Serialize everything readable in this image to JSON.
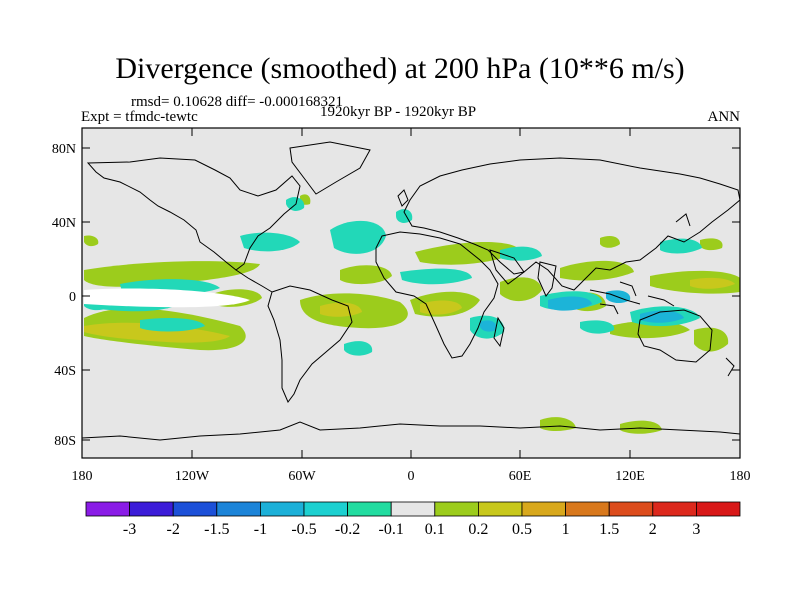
{
  "title": "Divergence (smoothed) at 200 hPa (10**6 m/s)",
  "stats": "rmsd= 0.10628 diff= -0.000168321",
  "experiment": "Expt = tfmdc-tewtc",
  "period": "1920kyr BP - 1920kyr BP",
  "season": "ANN",
  "lat_ticks": [
    "80N",
    "40N",
    "0",
    "40S",
    "80S"
  ],
  "lon_ticks": [
    "180",
    "120W",
    "60W",
    "0",
    "60E",
    "120E",
    "180"
  ],
  "colorbar": {
    "labels": [
      "-3",
      "-2",
      "-1.5",
      "-1",
      "-0.5",
      "-0.2",
      "-0.1",
      "0.1",
      "0.2",
      "0.5",
      "1",
      "1.5",
      "2",
      "3"
    ],
    "colors": [
      "#8a1ce6",
      "#3c1cd8",
      "#1c50d8",
      "#1c84d8",
      "#1cb0d8",
      "#1cd0d0",
      "#22dca0",
      "#e6e6e6",
      "#9ccc1c",
      "#c8c81c",
      "#d8a81c",
      "#d8781c",
      "#dc4c1c",
      "#dc281c",
      "#d81818"
    ]
  },
  "colors": {
    "background": "#e6e6e6",
    "neg_cyan": "#22d8b8",
    "neg_blue": "#1cb4d8",
    "pos_green": "#9ccc1c",
    "pos_yellow": "#c8c81c"
  }
}
